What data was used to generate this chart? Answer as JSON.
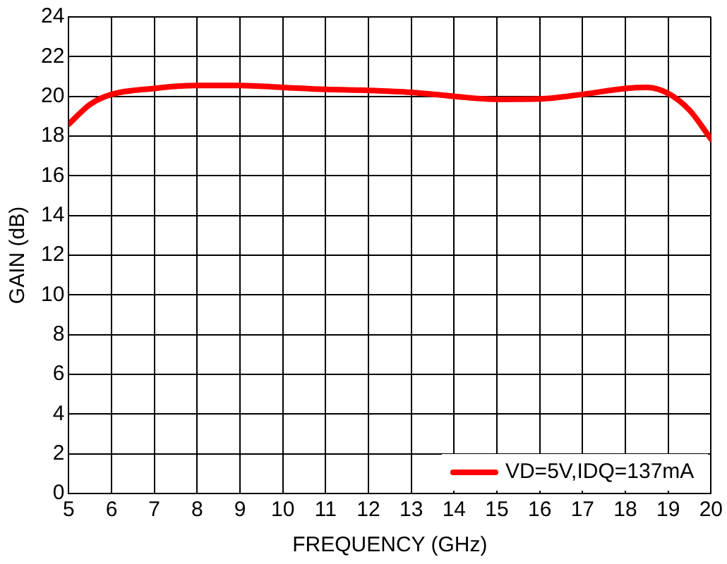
{
  "chart_data": {
    "type": "line",
    "xlabel": "FREQUENCY (GHz)",
    "ylabel": "GAIN (dB)",
    "x": [
      5,
      5.5,
      6,
      7,
      8,
      9,
      10,
      11,
      12,
      13,
      14,
      15,
      16,
      17,
      18,
      18.5,
      19,
      19.5,
      20
    ],
    "series": [
      {
        "name": "VD=5V,IDQ=137mA",
        "color": "#ff0000",
        "values": [
          18.6,
          19.6,
          20.1,
          20.4,
          20.55,
          20.55,
          20.45,
          20.35,
          20.3,
          20.2,
          20.0,
          19.85,
          19.87,
          20.1,
          20.4,
          20.45,
          20.15,
          19.3,
          17.85
        ]
      }
    ],
    "xlim": [
      5,
      20
    ],
    "xticks": [
      5,
      6,
      7,
      8,
      9,
      10,
      11,
      12,
      13,
      14,
      15,
      16,
      17,
      18,
      19,
      20
    ],
    "ylim": [
      0,
      24
    ],
    "yticks": [
      0,
      2,
      4,
      6,
      8,
      10,
      12,
      14,
      16,
      18,
      20,
      22,
      24
    ],
    "grid": true,
    "legend": "bottom right",
    "marker": "none",
    "line_style": "solid"
  }
}
